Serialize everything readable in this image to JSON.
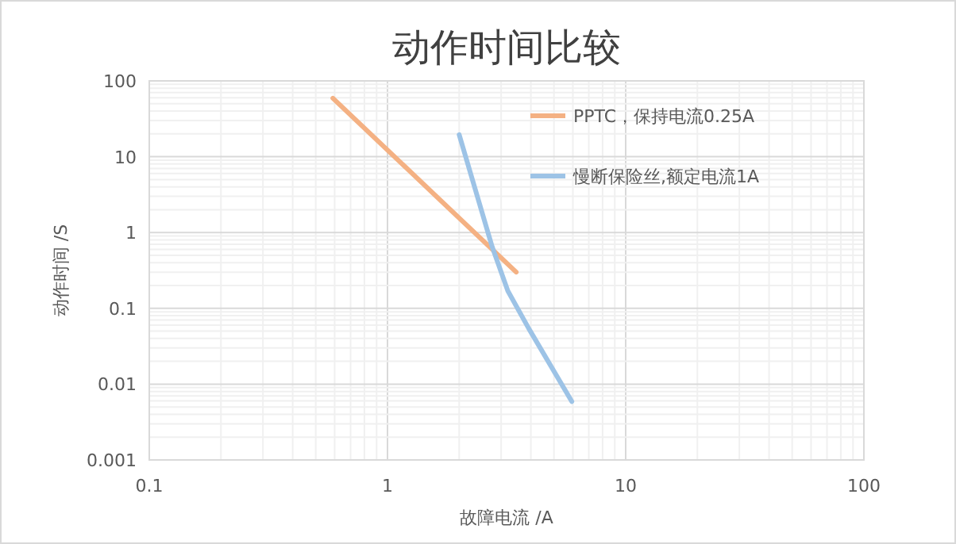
{
  "chart_data": {
    "type": "line",
    "title": "动作时间比较",
    "xlabel": "故障电流 /A",
    "ylabel": "动作时间 /S",
    "log": "xy",
    "grid": true,
    "legend": "top right",
    "marker": "none",
    "line_style": "solid",
    "xlim": [
      0.1,
      100
    ],
    "xticks": [
      0.1,
      1,
      10,
      100
    ],
    "ylim": [
      0.001,
      100
    ],
    "yticks": [
      0.001,
      0.01,
      0.1,
      1,
      10,
      100
    ],
    "series": [
      {
        "name": "PPTC，保持电流0.25A",
        "color": "#f4b183",
        "x": [
          0.59,
          3.47
        ],
        "values": [
          59,
          0.3
        ]
      },
      {
        "name": "慢断保险丝,额定电流1A",
        "color": "#9dc3e6",
        "x": [
          2.0,
          2.75,
          3.2,
          3.92,
          5.94
        ],
        "values": [
          19.5,
          0.65,
          0.17,
          0.054,
          0.0059
        ]
      }
    ]
  }
}
